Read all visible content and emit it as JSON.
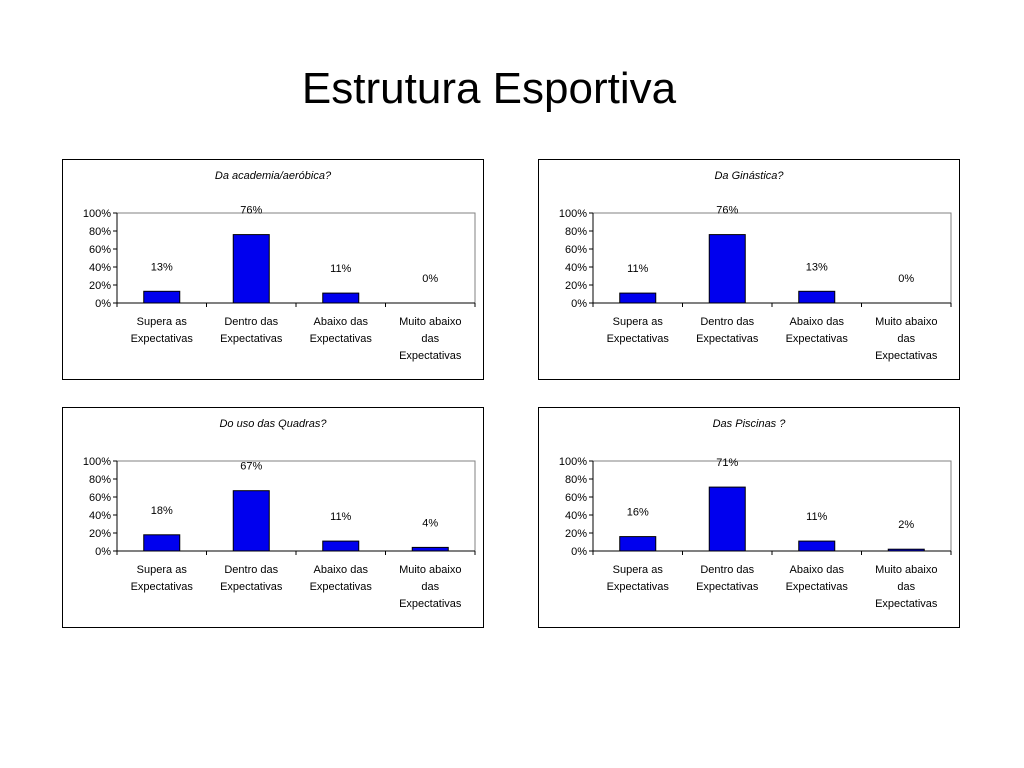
{
  "slide": {
    "title": "Estrutura Esportiva"
  },
  "style": {
    "bar_color": "#0000ee",
    "bar_stroke": "#000000",
    "plot_border": "#808080",
    "background": "#ffffff"
  },
  "chart_data": [
    {
      "type": "bar",
      "title": "Da academia/aeróbica?",
      "categories": [
        "Supera as Expectativas",
        "Dentro das Expectativas",
        "Abaixo das Expectativas",
        "Muito abaixo das Expectativas"
      ],
      "category_lines": [
        [
          "Supera as",
          "Expectativas"
        ],
        [
          "Dentro das",
          "Expectativas"
        ],
        [
          "Abaixo das",
          "Expectativas"
        ],
        [
          "Muito abaixo",
          "das",
          "Expectativas"
        ]
      ],
      "values": [
        13,
        76,
        11,
        0
      ],
      "data_labels": [
        "13%",
        "76%",
        "11%",
        "0%"
      ],
      "yticks": [
        "0%",
        "20%",
        "40%",
        "60%",
        "80%",
        "100%"
      ],
      "ylim": [
        0,
        100
      ],
      "xlabel": "",
      "ylabel": "",
      "grid": false,
      "legend": "none"
    },
    {
      "type": "bar",
      "title": "Da Ginástica?",
      "categories": [
        "Supera as Expectativas",
        "Dentro das Expectativas",
        "Abaixo das Expectativas",
        "Muito abaixo das Expectativas"
      ],
      "category_lines": [
        [
          "Supera as",
          "Expectativas"
        ],
        [
          "Dentro das",
          "Expectativas"
        ],
        [
          "Abaixo das",
          "Expectativas"
        ],
        [
          "Muito abaixo",
          "das",
          "Expectativas"
        ]
      ],
      "values": [
        11,
        76,
        13,
        0
      ],
      "data_labels": [
        "11%",
        "76%",
        "13%",
        "0%"
      ],
      "yticks": [
        "0%",
        "20%",
        "40%",
        "60%",
        "80%",
        "100%"
      ],
      "ylim": [
        0,
        100
      ],
      "xlabel": "",
      "ylabel": "",
      "grid": false,
      "legend": "none"
    },
    {
      "type": "bar",
      "title": "Do uso das Quadras?",
      "categories": [
        "Supera as Expectativas",
        "Dentro das Expectativas",
        "Abaixo das Expectativas",
        "Muito abaixo das Expectativas"
      ],
      "category_lines": [
        [
          "Supera as",
          "Expectativas"
        ],
        [
          "Dentro das",
          "Expectativas"
        ],
        [
          "Abaixo das",
          "Expectativas"
        ],
        [
          "Muito abaixo",
          "das",
          "Expectativas"
        ]
      ],
      "values": [
        18,
        67,
        11,
        4
      ],
      "data_labels": [
        "18%",
        "67%",
        "11%",
        "4%"
      ],
      "yticks": [
        "0%",
        "20%",
        "40%",
        "60%",
        "80%",
        "100%"
      ],
      "ylim": [
        0,
        100
      ],
      "xlabel": "",
      "ylabel": "",
      "grid": false,
      "legend": "none"
    },
    {
      "type": "bar",
      "title": "Das Piscinas ?",
      "categories": [
        "Supera as Expectativas",
        "Dentro das Expectativas",
        "Abaixo das Expectativas",
        "Muito abaixo das Expectativas"
      ],
      "category_lines": [
        [
          "Supera as",
          "Expectativas"
        ],
        [
          "Dentro das",
          "Expectativas"
        ],
        [
          "Abaixo das",
          "Expectativas"
        ],
        [
          "Muito abaixo",
          "das",
          "Expectativas"
        ]
      ],
      "values": [
        16,
        71,
        11,
        2
      ],
      "data_labels": [
        "16%",
        "71%",
        "11%",
        "2%"
      ],
      "yticks": [
        "0%",
        "20%",
        "40%",
        "60%",
        "80%",
        "100%"
      ],
      "ylim": [
        0,
        100
      ],
      "xlabel": "",
      "ylabel": "",
      "grid": false,
      "legend": "none"
    }
  ]
}
